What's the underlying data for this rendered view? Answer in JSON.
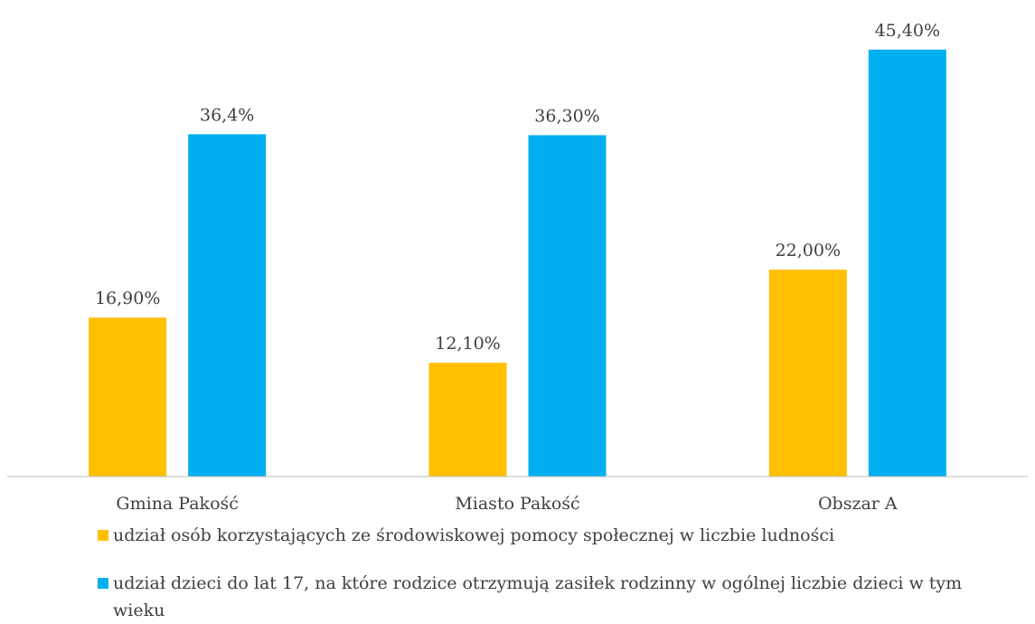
{
  "chart_data": {
    "type": "bar",
    "categories": [
      "Gmina Pakość",
      "Miasto Pakość",
      "Obszar A"
    ],
    "series": [
      {
        "name": "udział osób korzystających ze środowiskowej pomocy społecznej w liczbie ludności",
        "values": [
          16.9,
          12.1,
          22.0
        ],
        "labels": [
          "16,90%",
          "12,10%",
          "22,00%"
        ],
        "color": "#FFC000"
      },
      {
        "name": "udział dzieci do lat 17, na które rodzice otrzymują zasiłek rodzinny w ogólnej liczbie dzieci w tym wieku",
        "values": [
          36.4,
          36.3,
          45.4
        ],
        "labels": [
          "36,4%",
          "36,30%",
          "45,40%"
        ],
        "color": "#00B0F0"
      }
    ],
    "ylim": [
      0,
      50
    ],
    "grid": false,
    "legend_position": "bottom"
  }
}
